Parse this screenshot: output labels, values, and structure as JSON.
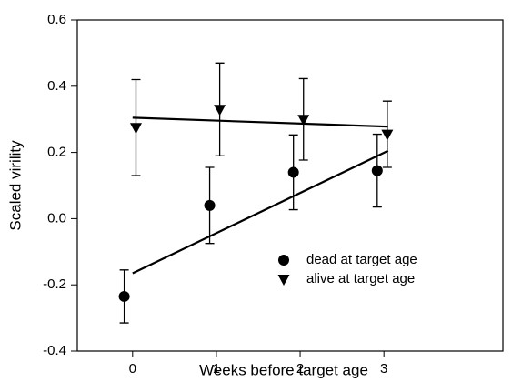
{
  "chart_data": {
    "type": "scatter",
    "xlabel": "Weeks before target age",
    "ylabel": "Scaled  virility",
    "xlim": [
      -0.66,
      4.42
    ],
    "xticks": [
      0,
      1,
      2,
      3
    ],
    "ylim": [
      -0.4,
      0.6
    ],
    "yticks": [
      {
        "value": -0.4,
        "label": "-0.4"
      },
      {
        "value": -0.2,
        "label": "-0.2"
      },
      {
        "value": 0,
        "label": "0.0"
      },
      {
        "value": 0.2,
        "label": "0.2"
      },
      {
        "value": 0.4,
        "label": "0.4"
      },
      {
        "value": 0.6,
        "label": "0.6"
      }
    ],
    "legend": "lower right",
    "series": [
      {
        "name": "dead at target age",
        "color": "#000000",
        "marker": "circle",
        "x": [
          -0.1,
          0.92,
          1.92,
          2.92
        ],
        "values": [
          -0.235,
          0.04,
          0.14,
          0.145
        ],
        "errors": [
          0.08,
          0.115,
          0.113,
          0.11
        ],
        "trend": {
          "x": [
            0,
            3.05
          ],
          "values": [
            -0.165,
            0.205
          ]
        }
      },
      {
        "name": "alive at target age",
        "color": "#000000",
        "marker": "triangle-down",
        "x": [
          0.04,
          1.04,
          2.04,
          3.04
        ],
        "values": [
          0.275,
          0.33,
          0.3,
          0.255
        ],
        "errors": [
          0.145,
          0.14,
          0.123,
          0.1
        ],
        "trend": {
          "x": [
            0,
            3.05
          ],
          "values": [
            0.305,
            0.278
          ]
        }
      }
    ]
  }
}
